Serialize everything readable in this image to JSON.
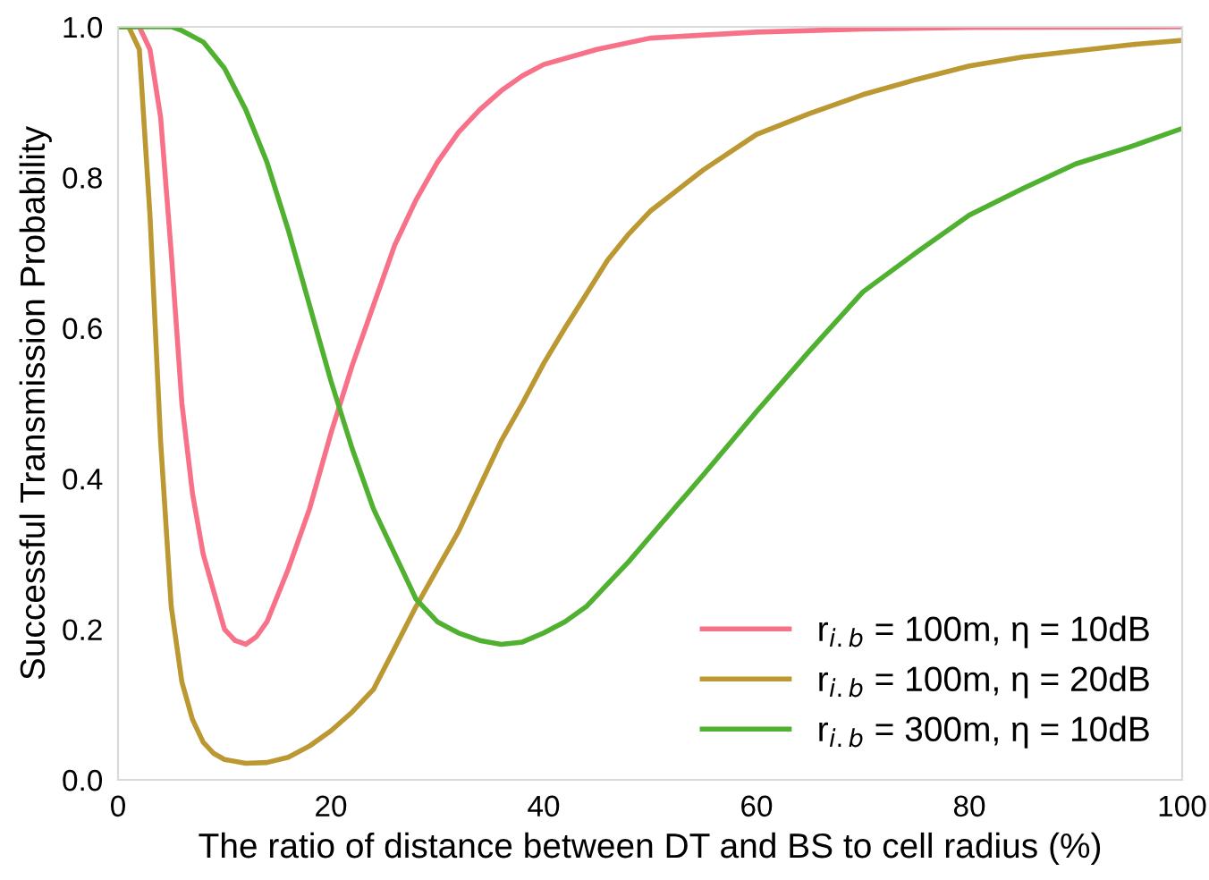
{
  "chart_data": {
    "type": "line",
    "xlabel": "The ratio of distance between DT and BS to cell radius (%)",
    "ylabel": "Successful Transmission Probability",
    "xlim": [
      0,
      100
    ],
    "ylim": [
      0,
      1.0
    ],
    "xticks": [
      0,
      20,
      40,
      60,
      80,
      100
    ],
    "yticks": [
      {
        "value": 0,
        "label": "0.0"
      },
      0.2,
      0.4,
      0.6,
      0.8,
      {
        "value": 1,
        "label": "1.0"
      }
    ],
    "grid": false,
    "legend": "bottom right",
    "marker": "none",
    "line_style": "solid",
    "series": [
      {
        "name": "r$_{i.b}$ = 100m, η = 10dB",
        "color": "#f77189",
        "x": [
          0,
          2,
          3,
          4,
          5,
          6,
          7,
          8,
          9,
          10,
          11,
          12,
          13,
          14,
          16,
          18,
          20,
          22,
          24,
          26,
          28,
          30,
          32,
          34,
          36,
          38,
          40,
          45,
          50,
          60,
          70,
          80,
          100
        ],
        "values": [
          1.0,
          1.0,
          0.97,
          0.88,
          0.7,
          0.5,
          0.38,
          0.3,
          0.25,
          0.2,
          0.185,
          0.18,
          0.19,
          0.21,
          0.28,
          0.36,
          0.46,
          0.55,
          0.63,
          0.71,
          0.77,
          0.82,
          0.86,
          0.89,
          0.915,
          0.935,
          0.95,
          0.97,
          0.985,
          0.993,
          0.997,
          0.999,
          1.0
        ]
      },
      {
        "name": "r$_{i.b}$ = 100m, η = 20dB",
        "color": "#bb9832",
        "x": [
          0,
          1,
          2,
          3,
          4,
          5,
          6,
          7,
          8,
          9,
          10,
          12,
          14,
          16,
          18,
          20,
          22,
          24,
          26,
          28,
          30,
          32,
          34,
          36,
          38,
          40,
          42,
          44,
          46,
          48,
          50,
          55,
          60,
          65,
          70,
          75,
          80,
          85,
          90,
          95,
          100
        ],
        "values": [
          1.0,
          1.0,
          0.97,
          0.75,
          0.45,
          0.23,
          0.13,
          0.08,
          0.05,
          0.035,
          0.027,
          0.022,
          0.023,
          0.03,
          0.045,
          0.065,
          0.09,
          0.12,
          0.175,
          0.23,
          0.28,
          0.33,
          0.39,
          0.45,
          0.5,
          0.553,
          0.6,
          0.645,
          0.69,
          0.725,
          0.755,
          0.81,
          0.857,
          0.885,
          0.91,
          0.93,
          0.948,
          0.96,
          0.968,
          0.976,
          0.982
        ]
      },
      {
        "name": "r$_{i.b}$ = 300m, η = 10dB",
        "color": "#50b131",
        "x": [
          0,
          5,
          6,
          8,
          10,
          12,
          14,
          16,
          18,
          20,
          22,
          24,
          26,
          28,
          30,
          32,
          34,
          36,
          38,
          40,
          42,
          44,
          46,
          48,
          50,
          55,
          60,
          65,
          70,
          75,
          80,
          85,
          90,
          95,
          100
        ],
        "values": [
          1.0,
          1.0,
          0.995,
          0.98,
          0.945,
          0.89,
          0.82,
          0.73,
          0.63,
          0.53,
          0.44,
          0.36,
          0.3,
          0.24,
          0.21,
          0.195,
          0.185,
          0.18,
          0.183,
          0.195,
          0.21,
          0.23,
          0.26,
          0.29,
          0.323,
          0.405,
          0.489,
          0.57,
          0.648,
          0.7,
          0.75,
          0.785,
          0.818,
          0.84,
          0.865
        ]
      }
    ]
  }
}
